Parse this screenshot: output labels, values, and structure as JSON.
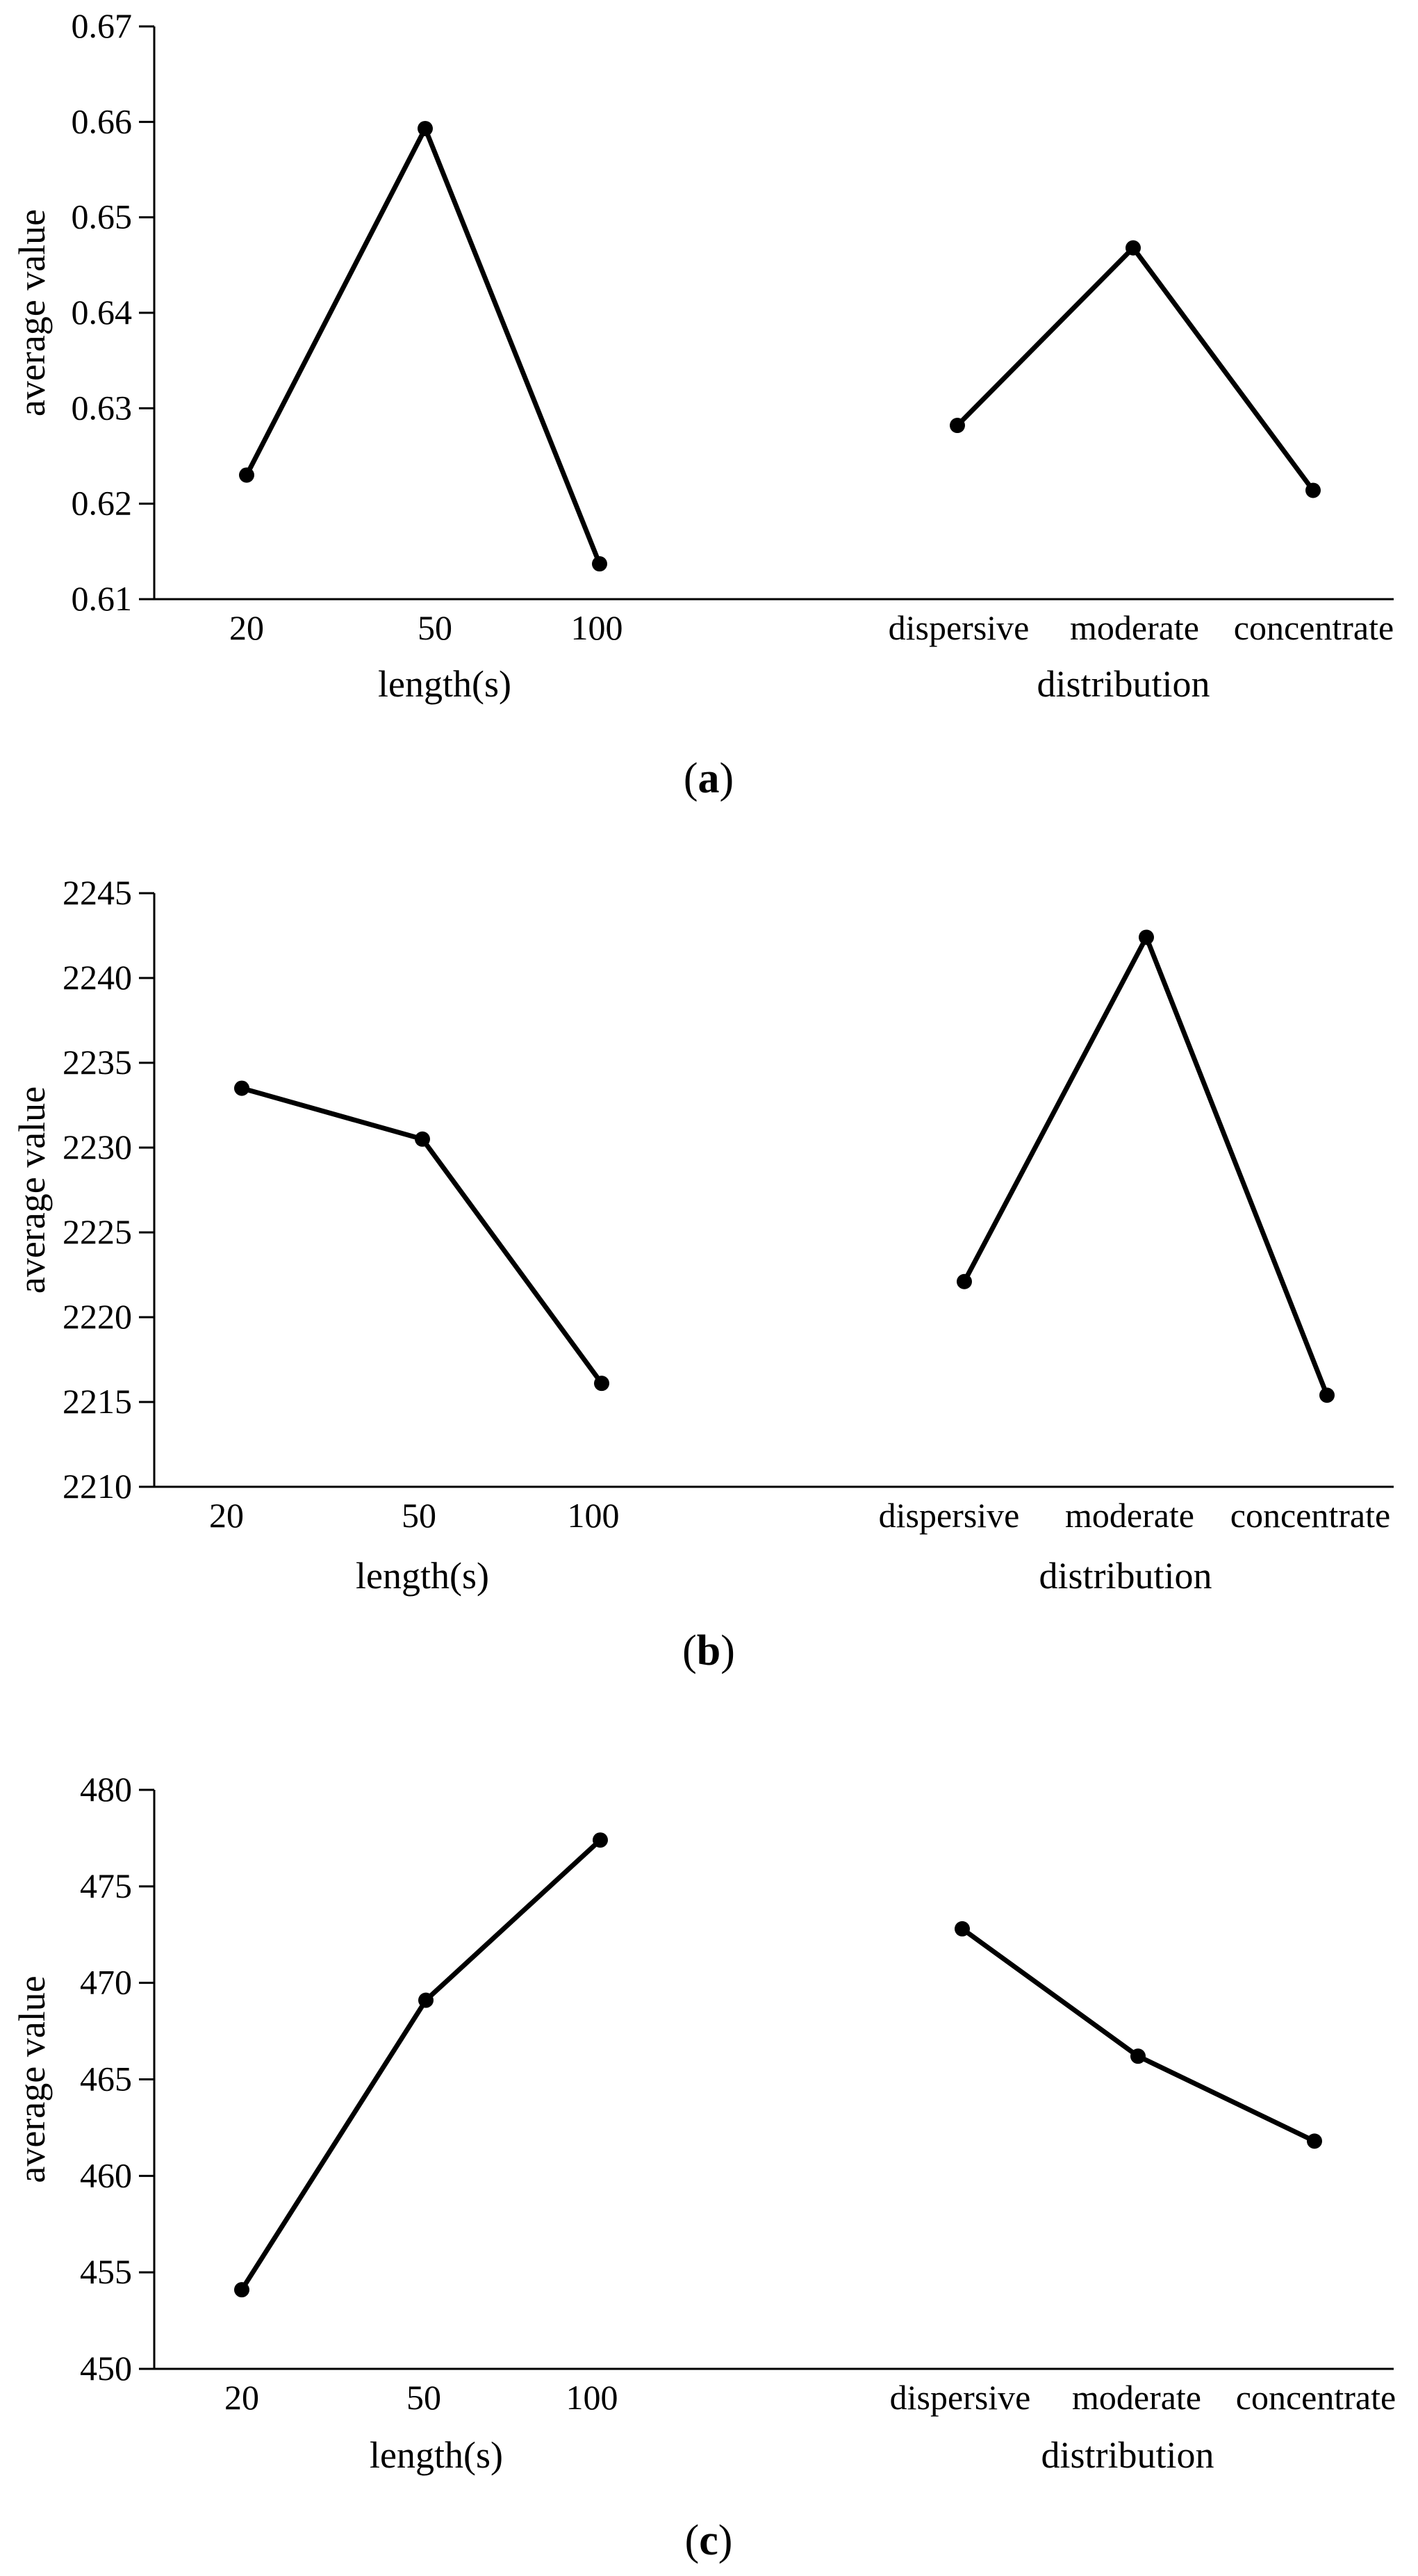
{
  "chart_data": [
    {
      "type": "line",
      "caption_letter": "a",
      "ylabel": "average value",
      "ylim": [
        0.61,
        0.67
      ],
      "yticks": [
        "0.61",
        "0.62",
        "0.63",
        "0.64",
        "0.65",
        "0.66",
        "0.67"
      ],
      "groups": [
        {
          "xlabel": "length(s)",
          "categories": [
            "20",
            "50",
            "100"
          ],
          "values": [
            0.623,
            0.6593,
            0.6137
          ]
        },
        {
          "xlabel": "distribution",
          "categories": [
            "dispersive",
            "moderate",
            "concentrate"
          ],
          "values": [
            0.6282,
            0.6468,
            0.6214
          ]
        }
      ],
      "grid": false,
      "legend": "none"
    },
    {
      "type": "line",
      "caption_letter": "b",
      "ylabel": "average value",
      "ylim": [
        2210,
        2245
      ],
      "yticks": [
        "2210",
        "2215",
        "2220",
        "2225",
        "2230",
        "2235",
        "2240",
        "2245"
      ],
      "groups": [
        {
          "xlabel": "length(s)",
          "categories": [
            "20",
            "50",
            "100"
          ],
          "values": [
            2233.5,
            2230.5,
            2216.1
          ]
        },
        {
          "xlabel": "distribution",
          "categories": [
            "dispersive",
            "moderate",
            "concentrate"
          ],
          "values": [
            2222.1,
            2242.4,
            2215.4
          ]
        }
      ],
      "grid": false,
      "legend": "none"
    },
    {
      "type": "line",
      "caption_letter": "c",
      "ylabel": "average value",
      "ylim": [
        450,
        480
      ],
      "yticks": [
        "450",
        "455",
        "460",
        "465",
        "470",
        "475",
        "480"
      ],
      "groups": [
        {
          "xlabel": "length(s)",
          "categories": [
            "20",
            "50",
            "100"
          ],
          "values": [
            454.1,
            469.1,
            477.4
          ]
        },
        {
          "xlabel": "distribution",
          "categories": [
            "dispersive",
            "moderate",
            "concentrate"
          ],
          "values": [
            472.8,
            466.2,
            461.8
          ]
        }
      ],
      "grid": false,
      "legend": "none"
    }
  ],
  "colors": {
    "line": "#000000",
    "axis": "#000000"
  }
}
